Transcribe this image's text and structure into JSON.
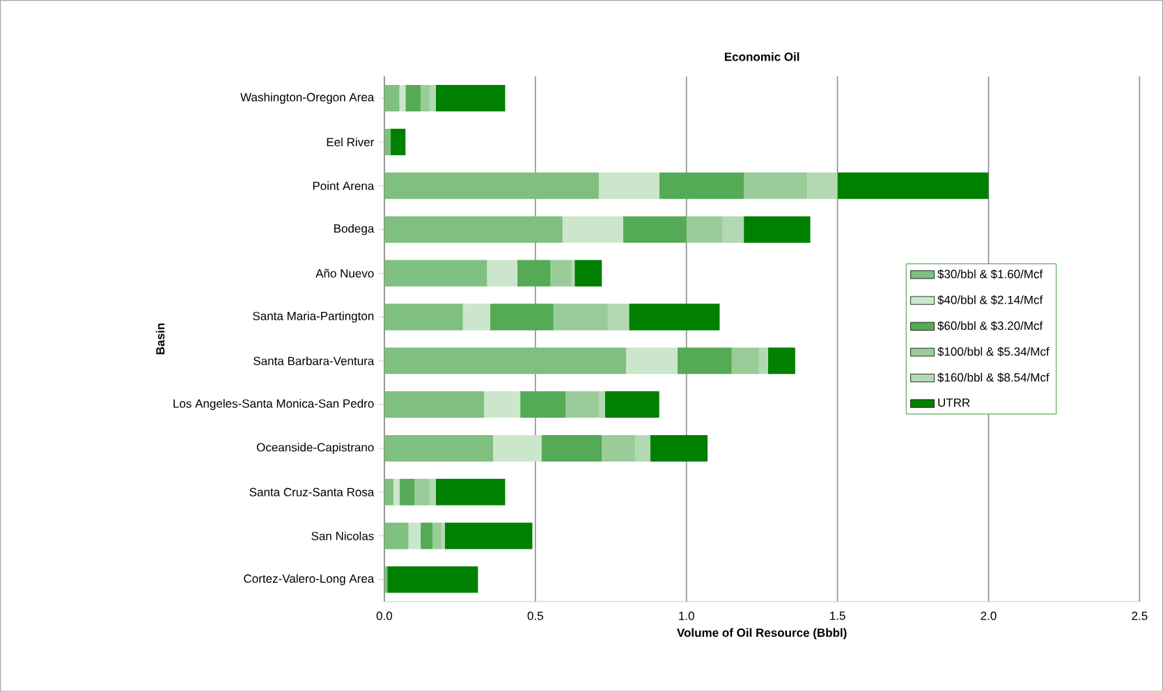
{
  "chart_data": {
    "type": "bar",
    "orientation": "horizontal",
    "stacked": true,
    "title": "Economic Oil",
    "xlabel": "Volume of Oil Resource (Bbbl)",
    "ylabel": "Basin",
    "categories": [
      "Washington-Oregon Area",
      "Eel River",
      "Point Arena",
      "Bodega",
      "Año Nuevo",
      "Santa Maria-Partington",
      "Santa Barbara-Ventura",
      "Los Angeles-Santa Monica-San Pedro",
      "Oceanside-Capistrano",
      "Santa Cruz-Santa Rosa",
      "San Nicolas",
      "Cortez-Valero-Long Area"
    ],
    "series": [
      {
        "name": "$30/bbl & $1.60/Mcf",
        "color": "#7fbf7f",
        "values": [
          0.05,
          0.02,
          0.71,
          0.59,
          0.34,
          0.26,
          0.8,
          0.33,
          0.36,
          0.03,
          0.08,
          0.01
        ]
      },
      {
        "name": "$40/bbl & $2.14/Mcf",
        "color": "#cce6cc",
        "values": [
          0.02,
          0,
          0.2,
          0.2,
          0.1,
          0.09,
          0.17,
          0.12,
          0.16,
          0.02,
          0.04,
          0
        ]
      },
      {
        "name": "$60/bbl & $3.20/Mcf",
        "color": "#55aa55",
        "values": [
          0.05,
          0,
          0.28,
          0.21,
          0.11,
          0.21,
          0.18,
          0.15,
          0.2,
          0.05,
          0.04,
          0
        ]
      },
      {
        "name": "$100/bbl & $5.34/Mcf",
        "color": "#99cc99",
        "values": [
          0.03,
          0,
          0.21,
          0.12,
          0.07,
          0.18,
          0.09,
          0.11,
          0.11,
          0.05,
          0.03,
          0
        ]
      },
      {
        "name": "$160/bbl & $8.54/Mcf",
        "color": "#b3d9b3",
        "values": [
          0.02,
          0,
          0.1,
          0.07,
          0.01,
          0.07,
          0.03,
          0.02,
          0.05,
          0.02,
          0.01,
          0
        ]
      },
      {
        "name": "UTRR",
        "color": "#008000",
        "values": [
          0.23,
          0.05,
          0.5,
          0.22,
          0.09,
          0.3,
          0.09,
          0.18,
          0.19,
          0.23,
          0.29,
          0.3
        ]
      }
    ],
    "xlim": [
      0,
      2.5
    ],
    "xticks": [
      {
        "value": 0,
        "label": "0.0"
      },
      0.5,
      {
        "value": 1,
        "label": "1.0"
      },
      1.5,
      {
        "value": 2,
        "label": "2.0"
      },
      2.5
    ],
    "grid": "x",
    "legend": "right"
  }
}
